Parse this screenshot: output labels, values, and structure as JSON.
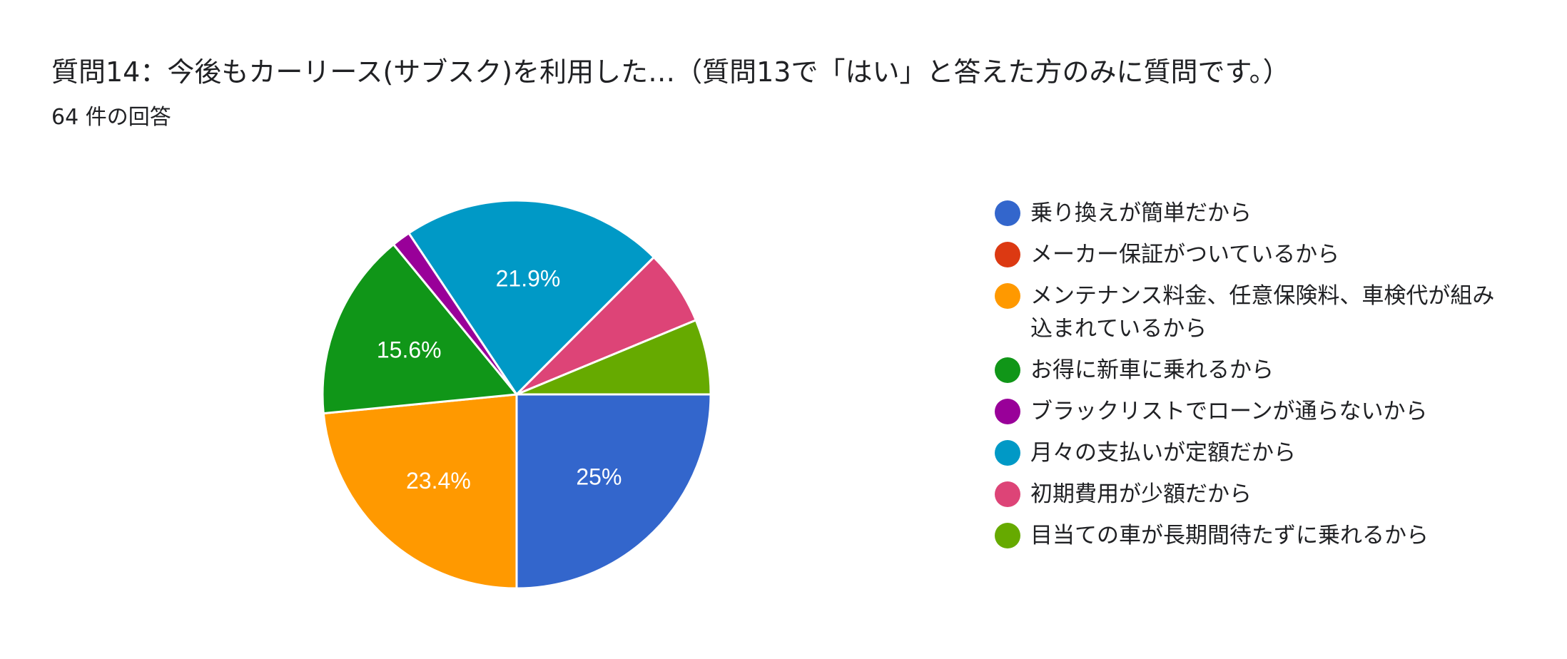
{
  "header": {
    "title": "質問14：今後もカーリース(サブスク)を利用した…（質問13で「はい」と答えた方のみに質問です。）",
    "response_count": "64 件の回答"
  },
  "chart_data": {
    "type": "pie",
    "title": "質問14：今後もカーリース(サブスク)を利用した…（質問13で「はい」と答えた方のみに質問です。）",
    "subtitle": "64 件の回答",
    "total_responses": 64,
    "legend_position": "right",
    "start_angle_deg": 0,
    "direction": "clockwise",
    "categories": [
      "乗り換えが簡単だから",
      "メーカー保証がついているから",
      "メンテナンス料金、任意保険料、車検代が組み込まれているから",
      "お得に新車に乗れるから",
      "ブラックリストでローンが通らないから",
      "月々の支払いが定額だから",
      "初期費用が少額だから",
      "目当ての車が長期間待たずに乗れるから"
    ],
    "counts": [
      16,
      0,
      15,
      10,
      1,
      14,
      4,
      4
    ],
    "values": [
      25.0,
      0.0,
      23.4,
      15.6,
      1.6,
      21.9,
      6.3,
      6.3
    ],
    "data_labels": [
      "25%",
      "",
      "23.4%",
      "15.6%",
      "",
      "21.9%",
      "",
      ""
    ],
    "colors": [
      "#3366cc",
      "#dc3912",
      "#ff9900",
      "#109618",
      "#990099",
      "#0099c6",
      "#dd4477",
      "#66aa00"
    ]
  },
  "legend": {
    "items": [
      {
        "label": "乗り換えが簡単だから",
        "color": "#3366cc"
      },
      {
        "label": "メーカー保証がついているから",
        "color": "#dc3912"
      },
      {
        "label": "メンテナンス料金、任意保険料、車検代が組み込まれているから",
        "color": "#ff9900"
      },
      {
        "label": "お得に新車に乗れるから",
        "color": "#109618"
      },
      {
        "label": "ブラックリストでローンが通らないから",
        "color": "#990099"
      },
      {
        "label": "月々の支払いが定額だから",
        "color": "#0099c6"
      },
      {
        "label": "初期費用が少額だから",
        "color": "#dd4477"
      },
      {
        "label": "目当ての車が長期間待たずに乗れるから",
        "color": "#66aa00"
      }
    ]
  }
}
